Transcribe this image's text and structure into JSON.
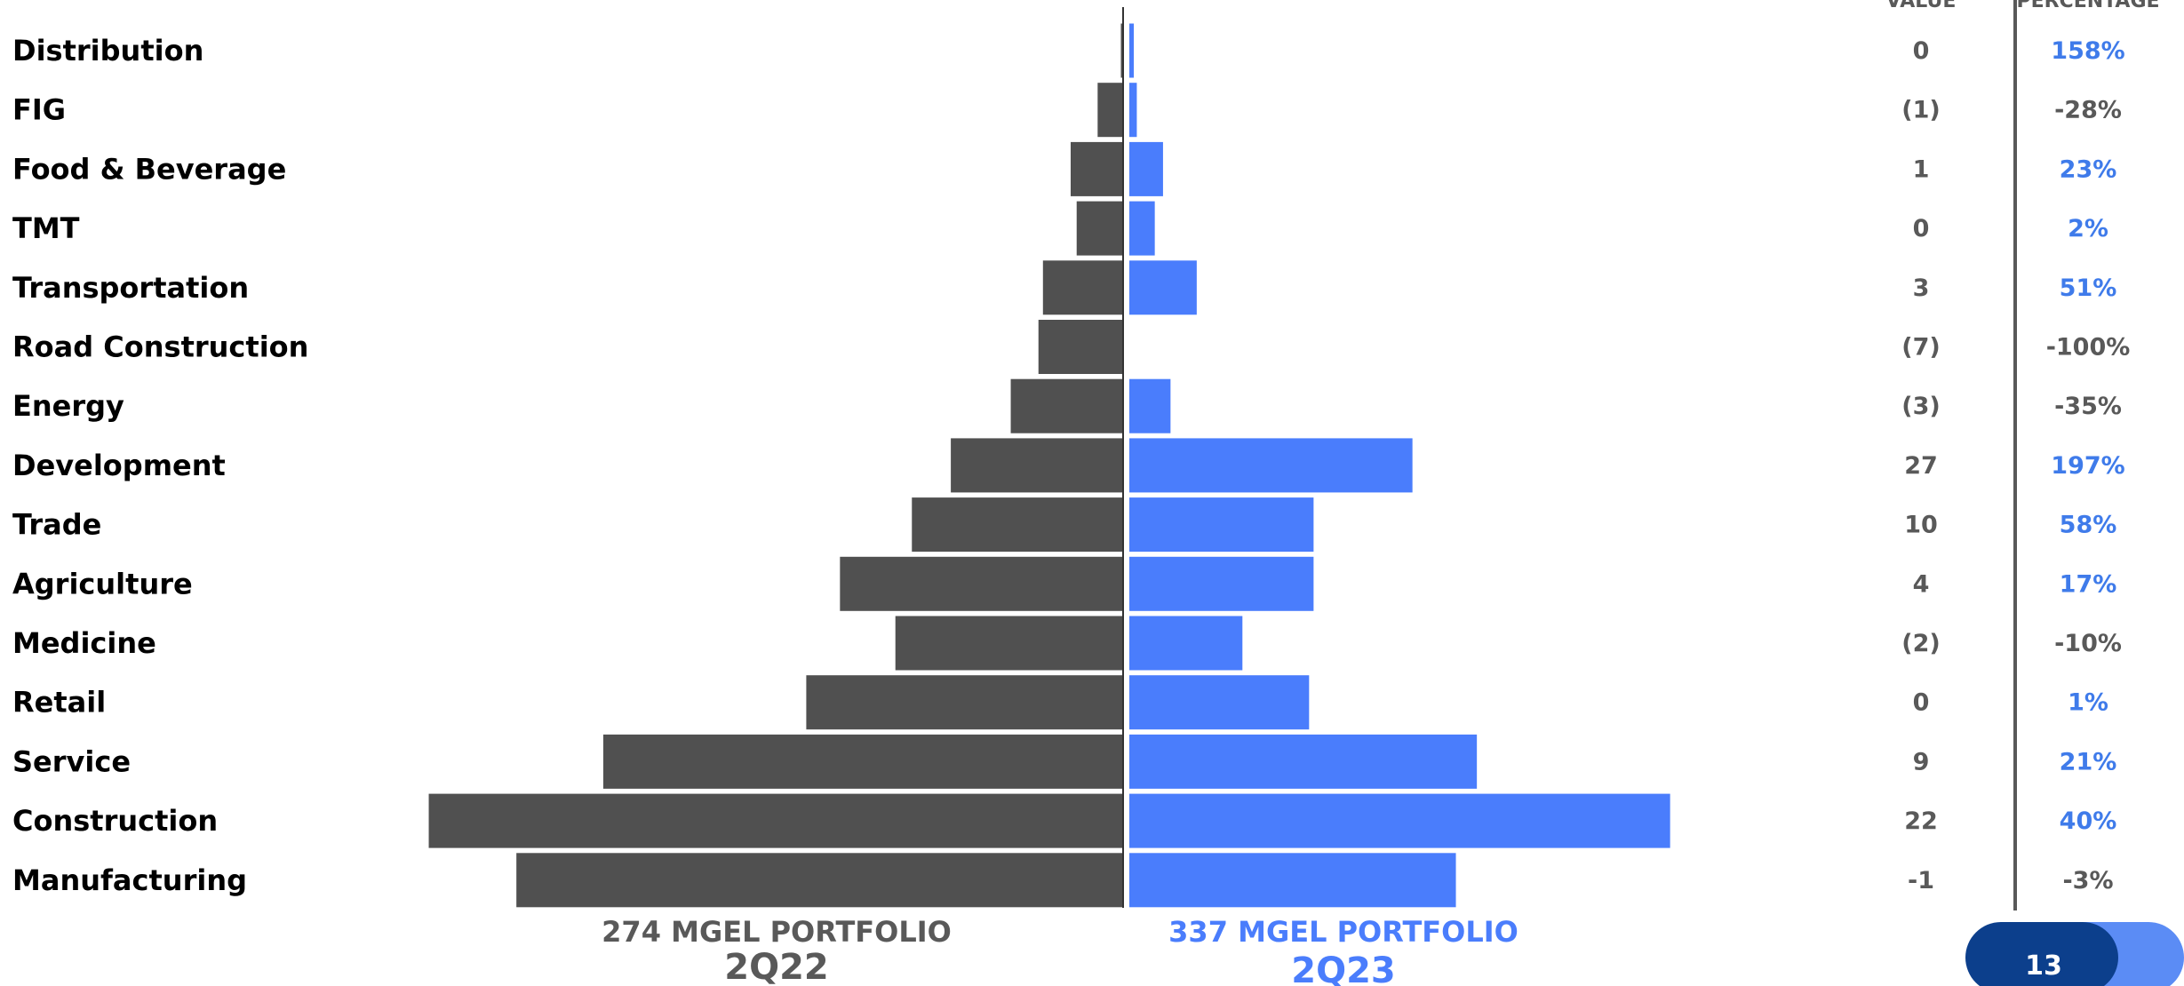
{
  "colors": {
    "left_bar": "#505050",
    "right_bar": "#4a7dfc",
    "label_dark": "#000000",
    "neutral_text": "#595959",
    "positive_text": "#3f7bea",
    "page_badge_dark": "#0c3f8c",
    "page_badge_light": "#5b8cf5"
  },
  "columns": {
    "value_header": "VALUE",
    "percentage_header": "PERCENTAGE"
  },
  "chart_data": {
    "type": "bar",
    "orientation": "horizontal-butterfly",
    "categories": [
      "Distribution",
      "FIG",
      "Food & Beverage",
      "TMT",
      "Transportation",
      "Road Construction",
      "Energy",
      "Development",
      "Trade",
      "Agriculture",
      "Medicine",
      "Retail",
      "Service",
      "Construction",
      "Manufacturing"
    ],
    "series": [
      {
        "name": "2Q22",
        "values": [
          0.3,
          3.4,
          7.0,
          6.2,
          10.7,
          11.3,
          15.0,
          23.0,
          28.2,
          37.8,
          30.4,
          42.3,
          69.4,
          92.7,
          81.0
        ]
      },
      {
        "name": "2Q23",
        "values": [
          0.6,
          1.0,
          4.5,
          3.4,
          9.0,
          0,
          5.5,
          37.8,
          24.6,
          24.6,
          15.1,
          24.0,
          46.4,
          72.2,
          43.6
        ]
      }
    ],
    "value_change": [
      "0",
      "(1)",
      "1",
      "0",
      "3",
      "(7)",
      "(3)",
      "27",
      "10",
      "4",
      "(2)",
      "0",
      "9",
      "22",
      "-1"
    ],
    "percentage_change": [
      "158%",
      "-28%",
      "23%",
      "2%",
      "51%",
      "-100%",
      "-35%",
      "197%",
      "58%",
      "17%",
      "-10%",
      "1%",
      "21%",
      "40%",
      "-3%"
    ],
    "percentage_positive": [
      true,
      false,
      true,
      true,
      true,
      false,
      false,
      true,
      true,
      true,
      false,
      true,
      true,
      true,
      false
    ],
    "left_caption": "274 MGEL PORTFOLIO",
    "left_period": "2Q22",
    "right_caption": "337 MGEL PORTFOLIO",
    "right_period": "2Q23"
  },
  "page_number": "13"
}
